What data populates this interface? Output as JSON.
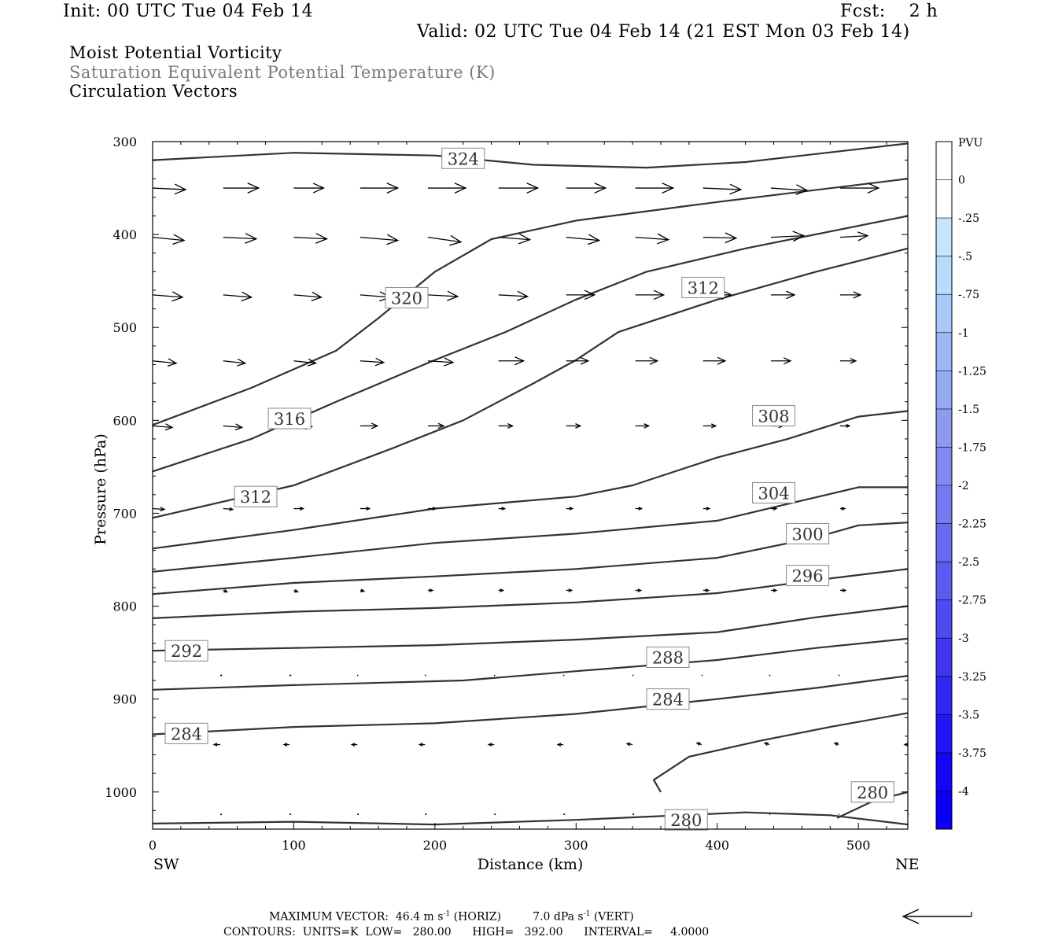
{
  "header": {
    "init": "Init: 00 UTC Tue 04 Feb 14",
    "fcst": "Fcst:    2 h",
    "valid": "Valid: 02 UTC Tue 04 Feb 14 (21 EST Mon 03 Feb 14)",
    "field1": "Moist Potential Vorticity",
    "field2": "Saturation Equivalent Potential Temperature (K)",
    "field3": "Circulation Vectors"
  },
  "footer": {
    "max_label": "MAXIMUM VECTOR:",
    "max_horiz": "46.4 m s",
    "max_horiz_unit": "(HORIZ)",
    "max_vert": "7.0 dPa s",
    "max_vert_unit": "(VERT)",
    "exp": "-1",
    "contours": "CONTOURS:  UNITS=K  LOW=   280.00      HIGH=   392.00      INTERVAL=     4.0000"
  },
  "chart_data": {
    "type": "cross-section",
    "xlabel": "Distance (km)",
    "ylabel": "Pressure (hPa)",
    "x_left_label": "SW",
    "x_right_label": "NE",
    "xlim": [
      0,
      535
    ],
    "ylim": [
      1040,
      300
    ],
    "xticks": [
      "0",
      "100",
      "200",
      "300",
      "400",
      "500"
    ],
    "xtick_values": [
      0,
      100,
      200,
      300,
      400,
      500
    ],
    "yticks": [
      "300",
      "400",
      "500",
      "600",
      "700",
      "800",
      "900",
      "1000"
    ],
    "ytick_values": [
      300,
      400,
      500,
      600,
      700,
      800,
      900,
      1000
    ],
    "colorbar": {
      "title": "PVU",
      "labels": [
        "0",
        "-.25",
        "-.5",
        "-.75",
        "-1",
        "-1.25",
        "-1.5",
        "-1.75",
        "-2",
        "-2.25",
        "-2.5",
        "-2.75",
        "-3",
        "-3.25",
        "-3.5",
        "-3.75",
        "-4"
      ],
      "colors": [
        "#ffffff",
        "#ffffff",
        "#c4e6ff",
        "#b8dcfb",
        "#a8c8f8",
        "#9fb8f5",
        "#96aaf3",
        "#8c9af1",
        "#8288f0",
        "#7878ef",
        "#6b69ef",
        "#5e5af0",
        "#5048f1",
        "#4236f2",
        "#3326f4",
        "#2514f6",
        "#1404f8",
        "#0a00fa"
      ]
    },
    "contours": [
      {
        "label": "324",
        "points": [
          [
            0,
            320
          ],
          [
            100,
            312
          ],
          [
            200,
            315
          ],
          [
            270,
            325
          ],
          [
            350,
            328
          ],
          [
            420,
            322
          ],
          [
            535,
            302
          ]
        ],
        "label_at": [
          220,
          318
        ]
      },
      {
        "label": "320",
        "points": [
          [
            0,
            605
          ],
          [
            70,
            565
          ],
          [
            130,
            525
          ],
          [
            160,
            490
          ],
          [
            200,
            440
          ],
          [
            240,
            405
          ],
          [
            300,
            385
          ],
          [
            400,
            365
          ],
          [
            535,
            340
          ]
        ],
        "label_at": [
          180,
          468
        ]
      },
      {
        "label": "316",
        "points": [
          [
            0,
            655
          ],
          [
            70,
            620
          ],
          [
            130,
            580
          ],
          [
            200,
            535
          ],
          [
            250,
            505
          ],
          [
            300,
            470
          ],
          [
            350,
            440
          ],
          [
            420,
            415
          ],
          [
            535,
            380
          ]
        ],
        "label_at": [
          97,
          598
        ]
      },
      {
        "label": "312",
        "points": [
          [
            0,
            705
          ],
          [
            100,
            670
          ],
          [
            170,
            630
          ],
          [
            220,
            600
          ],
          [
            270,
            560
          ],
          [
            300,
            535
          ],
          [
            330,
            505
          ],
          [
            400,
            470
          ],
          [
            470,
            440
          ],
          [
            535,
            415
          ]
        ],
        "label_at": [
          73,
          682
        ]
      },
      {
        "label": "312",
        "points": [],
        "label_at": [
          390,
          457
        ]
      },
      {
        "label": "308",
        "points": [
          [
            0,
            738
          ],
          [
            100,
            718
          ],
          [
            200,
            695
          ],
          [
            300,
            682
          ],
          [
            340,
            670
          ],
          [
            400,
            640
          ],
          [
            450,
            620
          ],
          [
            500,
            596
          ],
          [
            535,
            590
          ]
        ],
        "label_at": [
          440,
          595
        ]
      },
      {
        "label": "304",
        "points": [
          [
            0,
            763
          ],
          [
            100,
            748
          ],
          [
            200,
            732
          ],
          [
            300,
            722
          ],
          [
            400,
            708
          ],
          [
            450,
            690
          ],
          [
            500,
            672
          ],
          [
            535,
            672
          ]
        ],
        "label_at": [
          440,
          678
        ]
      },
      {
        "label": "300",
        "points": [
          [
            0,
            787
          ],
          [
            100,
            775
          ],
          [
            200,
            768
          ],
          [
            300,
            760
          ],
          [
            400,
            748
          ],
          [
            470,
            726
          ],
          [
            500,
            713
          ],
          [
            535,
            710
          ]
        ],
        "label_at": [
          464,
          722
        ]
      },
      {
        "label": "296",
        "points": [
          [
            0,
            813
          ],
          [
            100,
            806
          ],
          [
            200,
            802
          ],
          [
            300,
            796
          ],
          [
            400,
            786
          ],
          [
            470,
            772
          ],
          [
            535,
            760
          ]
        ],
        "label_at": [
          464,
          767
        ]
      },
      {
        "label": "292",
        "points": [
          [
            0,
            848
          ],
          [
            100,
            845
          ],
          [
            200,
            842
          ],
          [
            300,
            836
          ],
          [
            400,
            828
          ],
          [
            470,
            812
          ],
          [
            535,
            800
          ]
        ],
        "label_at": [
          24,
          848
        ]
      },
      {
        "label": "288",
        "points": [
          [
            0,
            890
          ],
          [
            100,
            885
          ],
          [
            220,
            880
          ],
          [
            300,
            870
          ],
          [
            400,
            858
          ],
          [
            470,
            845
          ],
          [
            535,
            835
          ]
        ],
        "label_at": [
          365,
          855
        ]
      },
      {
        "label": "284",
        "points": [
          [
            0,
            938
          ],
          [
            100,
            930
          ],
          [
            200,
            926
          ],
          [
            300,
            916
          ],
          [
            400,
            900
          ],
          [
            470,
            888
          ],
          [
            535,
            875
          ]
        ],
        "label_at": [
          365,
          900
        ]
      },
      {
        "label": "284",
        "points": [],
        "label_at": [
          24,
          937
        ]
      },
      {
        "label": "280",
        "points": [
          [
            360,
            1000
          ],
          [
            355,
            987
          ],
          [
            380,
            962
          ],
          [
            430,
            945
          ],
          [
            480,
            930
          ],
          [
            535,
            915
          ]
        ],
        "label_at": [
          378,
          1030
        ]
      },
      {
        "label": "280",
        "points": [
          [
            485,
            1028
          ],
          [
            510,
            1010
          ],
          [
            535,
            1000
          ]
        ],
        "label_at": [
          510,
          1000
        ]
      },
      {
        "label": "",
        "points": [
          [
            0,
            1034
          ],
          [
            100,
            1032
          ],
          [
            200,
            1035
          ],
          [
            300,
            1030
          ],
          [
            420,
            1022
          ],
          [
            480,
            1025
          ],
          [
            535,
            1035
          ]
        ],
        "label_at": null
      }
    ],
    "vector_rows": [
      {
        "p": 350,
        "x": [
          0,
          50,
          100,
          147,
          195,
          245,
          293,
          342,
          390,
          438,
          487
        ],
        "dx": [
          42,
          45,
          38,
          48,
          48,
          50,
          50,
          48,
          48,
          46,
          49
        ],
        "dy": [
          2,
          0,
          0,
          0,
          0,
          0,
          0,
          0,
          2,
          3,
          0
        ]
      },
      {
        "p": 403,
        "x": [
          0,
          50,
          100,
          147,
          195,
          245,
          293,
          342,
          390,
          438,
          487
        ],
        "dx": [
          40,
          42,
          42,
          48,
          42,
          40,
          42,
          42,
          42,
          42,
          35
        ],
        "dy": [
          4,
          2,
          2,
          4,
          6,
          3,
          4,
          3,
          1,
          -2,
          -2
        ]
      },
      {
        "p": 465,
        "x": [
          0,
          50,
          100,
          147,
          195,
          245,
          293,
          342,
          390,
          438,
          487
        ],
        "dx": [
          38,
          36,
          35,
          38,
          38,
          37,
          36,
          36,
          36,
          30,
          26
        ],
        "dy": [
          3,
          3,
          3,
          3,
          2,
          2,
          0,
          0,
          0,
          0,
          0
        ]
      },
      {
        "p": 536,
        "x": [
          0,
          50,
          100,
          147,
          195,
          245,
          293,
          342,
          390,
          438,
          487
        ],
        "dx": [
          30,
          28,
          28,
          30,
          32,
          32,
          28,
          28,
          28,
          25,
          20
        ],
        "dy": [
          3,
          3,
          3,
          2,
          2,
          0,
          0,
          0,
          0,
          0,
          0
        ]
      },
      {
        "p": 606,
        "x": [
          0,
          50,
          100,
          147,
          195,
          245,
          293,
          342,
          390,
          438,
          487
        ],
        "dx": [
          25,
          24,
          23,
          22,
          20,
          18,
          18,
          17,
          16,
          15,
          12
        ],
        "dy": [
          2,
          2,
          1,
          0,
          0,
          0,
          0,
          0,
          0,
          0,
          0
        ]
      },
      {
        "p": 695,
        "x": [
          0,
          50,
          100,
          147,
          195,
          245,
          293,
          342,
          390,
          438,
          487
        ],
        "dx": [
          15,
          12,
          12,
          12,
          10,
          8,
          8,
          8,
          8,
          7,
          6
        ],
        "dy": [
          1,
          1,
          0,
          0,
          0,
          0,
          0,
          0,
          0,
          0,
          0
        ]
      },
      {
        "p": 783,
        "x": [
          50,
          100,
          147,
          195,
          245,
          293,
          342,
          390,
          438,
          487
        ],
        "dx": [
          5,
          5,
          5,
          6,
          6,
          7,
          7,
          7,
          7,
          7
        ],
        "dy": [
          2,
          2,
          1,
          0,
          0,
          0,
          0,
          0,
          0,
          0
        ]
      },
      {
        "p": 875,
        "x": [
          48,
          97,
          145,
          193,
          242,
          291,
          340,
          389,
          437,
          486
        ],
        "dx": [
          2,
          2,
          1,
          1,
          1,
          1,
          1,
          1,
          1,
          1
        ],
        "dy": [
          -1,
          -1,
          -1,
          -1,
          -1,
          -1,
          -1,
          -1,
          -1,
          -1
        ]
      },
      {
        "p": 949,
        "x": [
          48,
          97,
          145,
          193,
          242,
          291,
          340,
          389,
          437,
          486,
          535
        ],
        "dx": [
          -8,
          -7,
          -7,
          -7,
          -7,
          -7,
          -7,
          -6,
          -6,
          -5,
          -4
        ],
        "dy": [
          0,
          0,
          0,
          0,
          0,
          0,
          -1,
          -2,
          -2,
          -2,
          0
        ]
      },
      {
        "p": 1024,
        "x": [
          48,
          97,
          145,
          193,
          242,
          291,
          340,
          389,
          437,
          486,
          535
        ],
        "dx": [
          2,
          2,
          2,
          2,
          2,
          2,
          2,
          1,
          1,
          1,
          0
        ],
        "dy": [
          0,
          0,
          0,
          0,
          0,
          0,
          0,
          0,
          0,
          0,
          0
        ]
      }
    ]
  }
}
